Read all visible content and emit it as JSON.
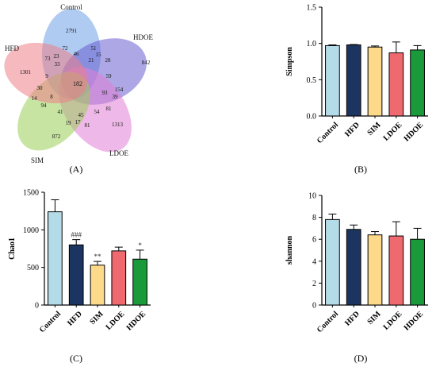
{
  "venn": {
    "sets": [
      {
        "name": "Control",
        "unique": 2791,
        "color": "#6fa0e6"
      },
      {
        "name": "HDOE",
        "unique": 842,
        "color": "#6a5fd0"
      },
      {
        "name": "LDOE",
        "unique": 1313,
        "color": "#e07fd6"
      },
      {
        "name": "SIM",
        "unique": 872,
        "color": "#9acd56"
      },
      {
        "name": "HFD",
        "unique": 1301,
        "color": "#ec8088"
      }
    ],
    "region_labels": [
      "72",
      "51",
      "46",
      "15",
      "21",
      "28",
      "23",
      "73",
      "33",
      "9",
      "30",
      "182",
      "59",
      "154",
      "93",
      "39",
      "81",
      "14",
      "8",
      "94",
      "41",
      "45",
      "54",
      "19",
      "17",
      "81"
    ],
    "core": 182
  },
  "panels": {
    "A": {
      "label": "(A)"
    },
    "B": {
      "label": "(B)"
    },
    "C": {
      "label": "(C)"
    },
    "D": {
      "label": "(D)"
    }
  },
  "chart_data": [
    {
      "panel": "B",
      "type": "bar",
      "categories": [
        "Control",
        "HFD",
        "SIM",
        "LDOE",
        "HDOE"
      ],
      "values": [
        0.97,
        0.98,
        0.95,
        0.87,
        0.91
      ],
      "errors": [
        0.01,
        0.005,
        0.015,
        0.15,
        0.06
      ],
      "annotations": [
        "",
        "",
        "",
        "",
        ""
      ],
      "ylabel": "Simpson",
      "ylim": [
        0,
        1.5
      ],
      "yticks": [
        0.0,
        0.5,
        1.0,
        1.5
      ],
      "colors": [
        "#b4dce8",
        "#1c3560",
        "#fdd98a",
        "#ef6a6e",
        "#1a9a3a"
      ]
    },
    {
      "panel": "C",
      "type": "bar",
      "categories": [
        "Control",
        "HFD",
        "SIM",
        "LDOE",
        "HDOE"
      ],
      "values": [
        1240,
        800,
        530,
        720,
        610
      ],
      "errors": [
        160,
        70,
        50,
        50,
        120
      ],
      "annotations": [
        "",
        "###",
        "**",
        "",
        "*"
      ],
      "ylabel": "Chao1",
      "ylim": [
        0,
        1500
      ],
      "yticks": [
        0,
        500,
        1000,
        1500
      ],
      "colors": [
        "#b4dce8",
        "#1c3560",
        "#fdd98a",
        "#ef6a6e",
        "#1a9a3a"
      ]
    },
    {
      "panel": "D",
      "type": "bar",
      "categories": [
        "Control",
        "HFD",
        "SIM",
        "LDOE",
        "HDOE"
      ],
      "values": [
        7.8,
        6.9,
        6.4,
        6.3,
        6.0
      ],
      "errors": [
        0.5,
        0.4,
        0.3,
        1.3,
        1.0
      ],
      "annotations": [
        "",
        "",
        "",
        "",
        ""
      ],
      "ylabel": "shannon",
      "ylim": [
        0,
        10
      ],
      "yticks": [
        0,
        2,
        4,
        6,
        8,
        10
      ],
      "colors": [
        "#b4dce8",
        "#1c3560",
        "#fdd98a",
        "#ef6a6e",
        "#1a9a3a"
      ]
    }
  ]
}
